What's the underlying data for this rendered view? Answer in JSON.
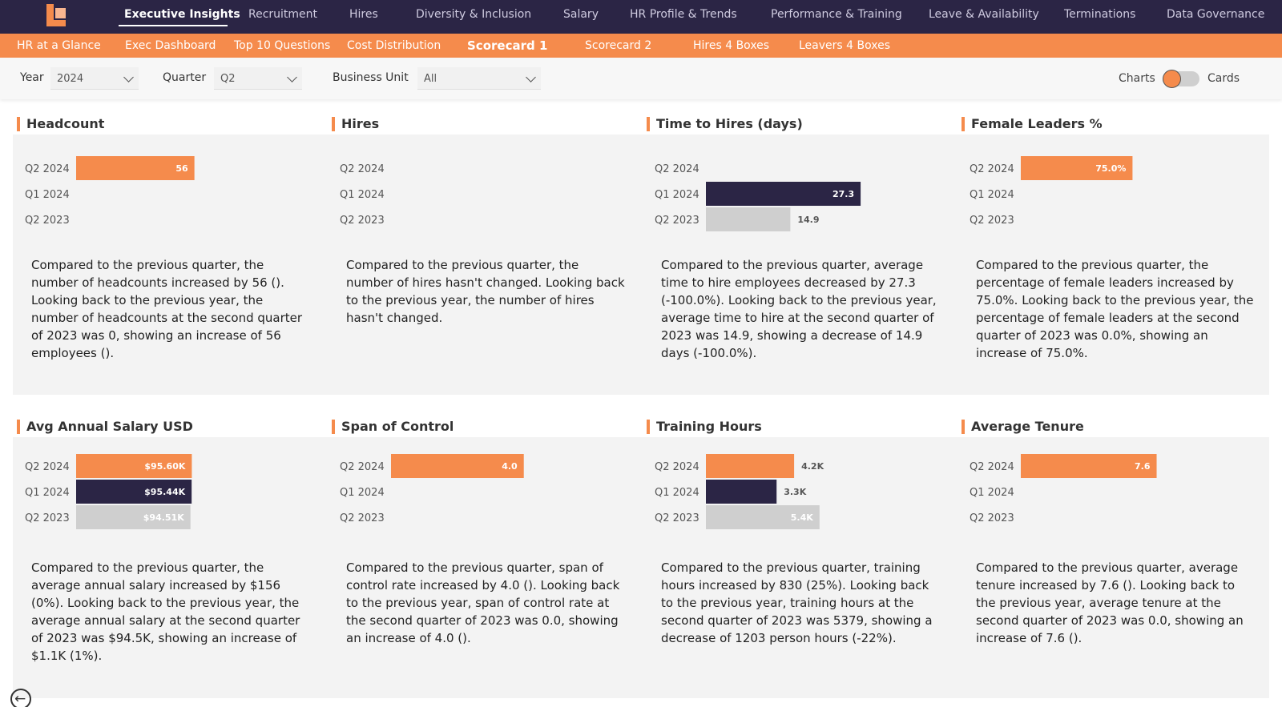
{
  "colors": {
    "accent": "#f58b4c",
    "navy": "#2b2545",
    "gray_bar": "#cfcfcf"
  },
  "topnav": {
    "logo": "logo-icon",
    "items": [
      {
        "label": "Executive Insights",
        "active": true
      },
      {
        "label": "Recruitment"
      },
      {
        "label": "Hires"
      },
      {
        "label": "Diversity & Inclusion"
      },
      {
        "label": "Salary"
      },
      {
        "label": "HR Profile & Trends"
      },
      {
        "label": "Performance & Training"
      },
      {
        "label": "Leave & Availability"
      },
      {
        "label": "Terminations"
      },
      {
        "label": "Data Governance"
      }
    ]
  },
  "subnav": {
    "items": [
      {
        "label": "HR at a Glance"
      },
      {
        "label": "Exec Dashboard"
      },
      {
        "label": "Top 10 Questions"
      },
      {
        "label": "Cost Distribution"
      },
      {
        "label": "Scorecard 1",
        "active": true
      },
      {
        "label": "Scorecard 2"
      },
      {
        "label": "Hires 4 Boxes"
      },
      {
        "label": "Leavers 4 Boxes"
      }
    ]
  },
  "filters": {
    "year": {
      "label": "Year",
      "value": "2024"
    },
    "quarter": {
      "label": "Quarter",
      "value": "Q2"
    },
    "business_unit": {
      "label": "Business Unit",
      "value": "All"
    },
    "toggle": {
      "left": "Charts",
      "right": "Cards"
    }
  },
  "periods": [
    "Q2 2024",
    "Q1 2024",
    "Q2 2023"
  ],
  "cards": [
    {
      "title": "Headcount",
      "values": [
        56,
        0,
        0
      ],
      "max": 110,
      "labels": [
        "56",
        "",
        ""
      ],
      "inside": [
        true,
        true,
        true
      ],
      "description": "Compared to the previous quarter, the number of headcounts increased by 56 (). Looking back to the previous year, the number of headcounts at the second quarter of 2023 was 0, showing an increase of 56 employees ()."
    },
    {
      "title": "Hires",
      "values": [
        0,
        0,
        0
      ],
      "max": 1,
      "labels": [
        "",
        "",
        ""
      ],
      "inside": [
        true,
        true,
        true
      ],
      "description": "Compared to the previous quarter, the number of hires hasn't changed. Looking back to the previous year, the number of hires hasn't changed."
    },
    {
      "title": "Time to Hires (days)",
      "values": [
        0,
        27.3,
        14.9
      ],
      "max": 41,
      "labels": [
        "",
        "27.3",
        "14.9"
      ],
      "inside": [
        true,
        true,
        false
      ],
      "description": "Compared to the previous quarter, average time to hire employees decreased by 27.3 (-100.0%). Looking back to the previous year, average time to hire at the second quarter of 2023 was 14.9, showing a decrease of 14.9 days (-100.0%)."
    },
    {
      "title": "Female Leaders %",
      "values": [
        75,
        0,
        0
      ],
      "max": 156,
      "labels": [
        "75.0%",
        "",
        ""
      ],
      "inside": [
        true,
        true,
        true
      ],
      "description": "Compared to the previous quarter, the percentage of female leaders increased by 75.0%. Looking back to the previous year, the percentage of female leaders at the second quarter of 2023 was 0.0%, showing an increase of 75.0%."
    },
    {
      "title": "Avg Annual Salary USD",
      "values": [
        95600,
        95440,
        94510
      ],
      "max": 192000,
      "labels": [
        "$95.60K",
        "$95.44K",
        "$94.51K"
      ],
      "inside": [
        true,
        true,
        true
      ],
      "description": "Compared to the previous quarter, the average annual salary increased by $156 (0%). Looking back to the previous year, the average annual salary at the second quarter of 2023 was $94.5K, showing an increase of $1.1K (1%)."
    },
    {
      "title": "Span of Control",
      "values": [
        4.0,
        0,
        0
      ],
      "max": 7,
      "labels": [
        "4.0",
        "",
        ""
      ],
      "inside": [
        true,
        true,
        true
      ],
      "description": "Compared to the previous quarter, span of control rate increased by 4.0 (). Looking back to the previous year, span of control rate at the second quarter of 2023 was 0.0, showing an increase of 4.0 ()."
    },
    {
      "title": "Training Hours",
      "values": [
        4176,
        3346,
        5379
      ],
      "max": 11000,
      "labels": [
        "4.2K",
        "3.3K",
        "5.4K"
      ],
      "inside": [
        false,
        false,
        true
      ],
      "description": "Compared to the previous quarter, training hours increased by 830 (25%). Looking back to the previous year, training hours at the second quarter of 2023 was 5379, showing a decrease of 1203 person hours (-22%)."
    },
    {
      "title": "Average Tenure",
      "values": [
        7.6,
        0,
        0
      ],
      "max": 13,
      "labels": [
        "7.6",
        "",
        ""
      ],
      "inside": [
        true,
        true,
        true
      ],
      "description": "Compared to the previous quarter, average tenure increased by 7.6 (). Looking back to the previous year, average tenure at the second quarter of 2023 was 0.0, showing an increase of 7.6 ()."
    }
  ],
  "footer": {
    "back_icon": "back-arrow-icon"
  }
}
